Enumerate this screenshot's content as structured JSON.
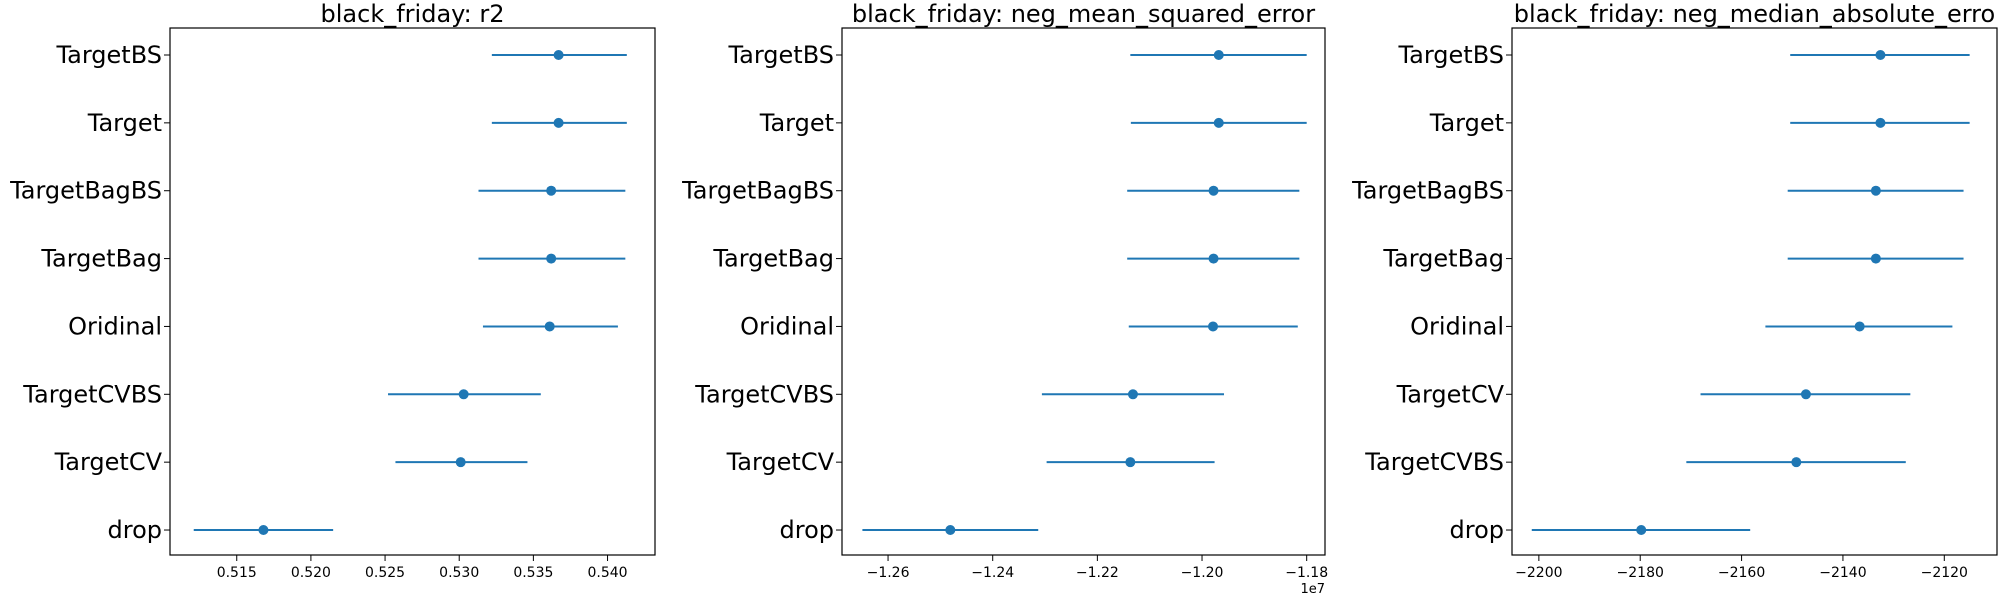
{
  "colors": {
    "series": "#1f77b4",
    "axis": "#000000"
  },
  "chart_data": [
    {
      "type": "scatter",
      "title": "black_friday: r2",
      "categories": [
        "TargetBS",
        "Target",
        "TargetBagBS",
        "TargetBag",
        "Oridinal",
        "TargetCVBS",
        "TargetCV",
        "drop"
      ],
      "means": [
        0.5367,
        0.5367,
        0.5362,
        0.5362,
        0.5361,
        0.5303,
        0.5301,
        0.5168
      ],
      "lower": [
        0.5322,
        0.5322,
        0.5313,
        0.5313,
        0.5316,
        0.5252,
        0.5257,
        0.5121
      ],
      "upper": [
        0.5413,
        0.5413,
        0.5412,
        0.5412,
        0.5407,
        0.5355,
        0.5346,
        0.5215
      ],
      "xlim": [
        0.5105,
        0.5432
      ],
      "xticks": [
        0.515,
        0.52,
        0.525,
        0.53,
        0.535,
        0.54
      ],
      "xtick_labels": [
        "0.515",
        "0.520",
        "0.525",
        "0.530",
        "0.535",
        "0.540"
      ],
      "offset_label": ""
    },
    {
      "type": "scatter",
      "title": "black_friday: neg_mean_squared_error",
      "categories": [
        "TargetBS",
        "Target",
        "TargetBagBS",
        "TargetBag",
        "Oridinal",
        "TargetCVBS",
        "TargetCV",
        "drop"
      ],
      "means": [
        -1.1968,
        -1.1968,
        -1.1978,
        -1.1978,
        -1.1979,
        -1.2132,
        -1.2137,
        -1.2481
      ],
      "lower": [
        -1.2137,
        -1.2136,
        -1.2143,
        -1.2143,
        -1.214,
        -1.2306,
        -1.2297,
        -1.2649
      ],
      "upper": [
        -1.18,
        -1.18,
        -1.1814,
        -1.1814,
        -1.1817,
        -1.1958,
        -1.1976,
        -1.2313
      ],
      "xlim": [
        -1.2688,
        -1.1765
      ],
      "xticks": [
        -1.26,
        -1.24,
        -1.22,
        -1.2,
        -1.18
      ],
      "xtick_labels": [
        "−1.26",
        "−1.24",
        "−1.22",
        "−1.20",
        "−1.18"
      ],
      "offset_label": "1e7"
    },
    {
      "type": "scatter",
      "title": "black_friday: neg_median_absolute_erro",
      "categories": [
        "TargetBS",
        "Target",
        "TargetBagBS",
        "TargetBag",
        "Oridinal",
        "TargetCV",
        "TargetCVBS",
        "drop"
      ],
      "means": [
        -2132.6,
        -2132.6,
        -2133.5,
        -2133.5,
        -2136.7,
        -2147.3,
        -2149.2,
        -2179.8
      ],
      "lower": [
        -2150.4,
        -2150.4,
        -2150.9,
        -2150.9,
        -2155.3,
        -2168.1,
        -2170.9,
        -2201.4
      ],
      "upper": [
        -2115.0,
        -2115.0,
        -2116.2,
        -2116.2,
        -2118.4,
        -2126.7,
        -2127.6,
        -2158.3
      ],
      "xlim": [
        -2205.3,
        -2109.6
      ],
      "xticks": [
        -2200,
        -2180,
        -2160,
        -2140,
        -2120
      ],
      "xtick_labels": [
        "−2200",
        "−2180",
        "−2160",
        "−2140",
        "−2120"
      ],
      "offset_label": ""
    }
  ]
}
